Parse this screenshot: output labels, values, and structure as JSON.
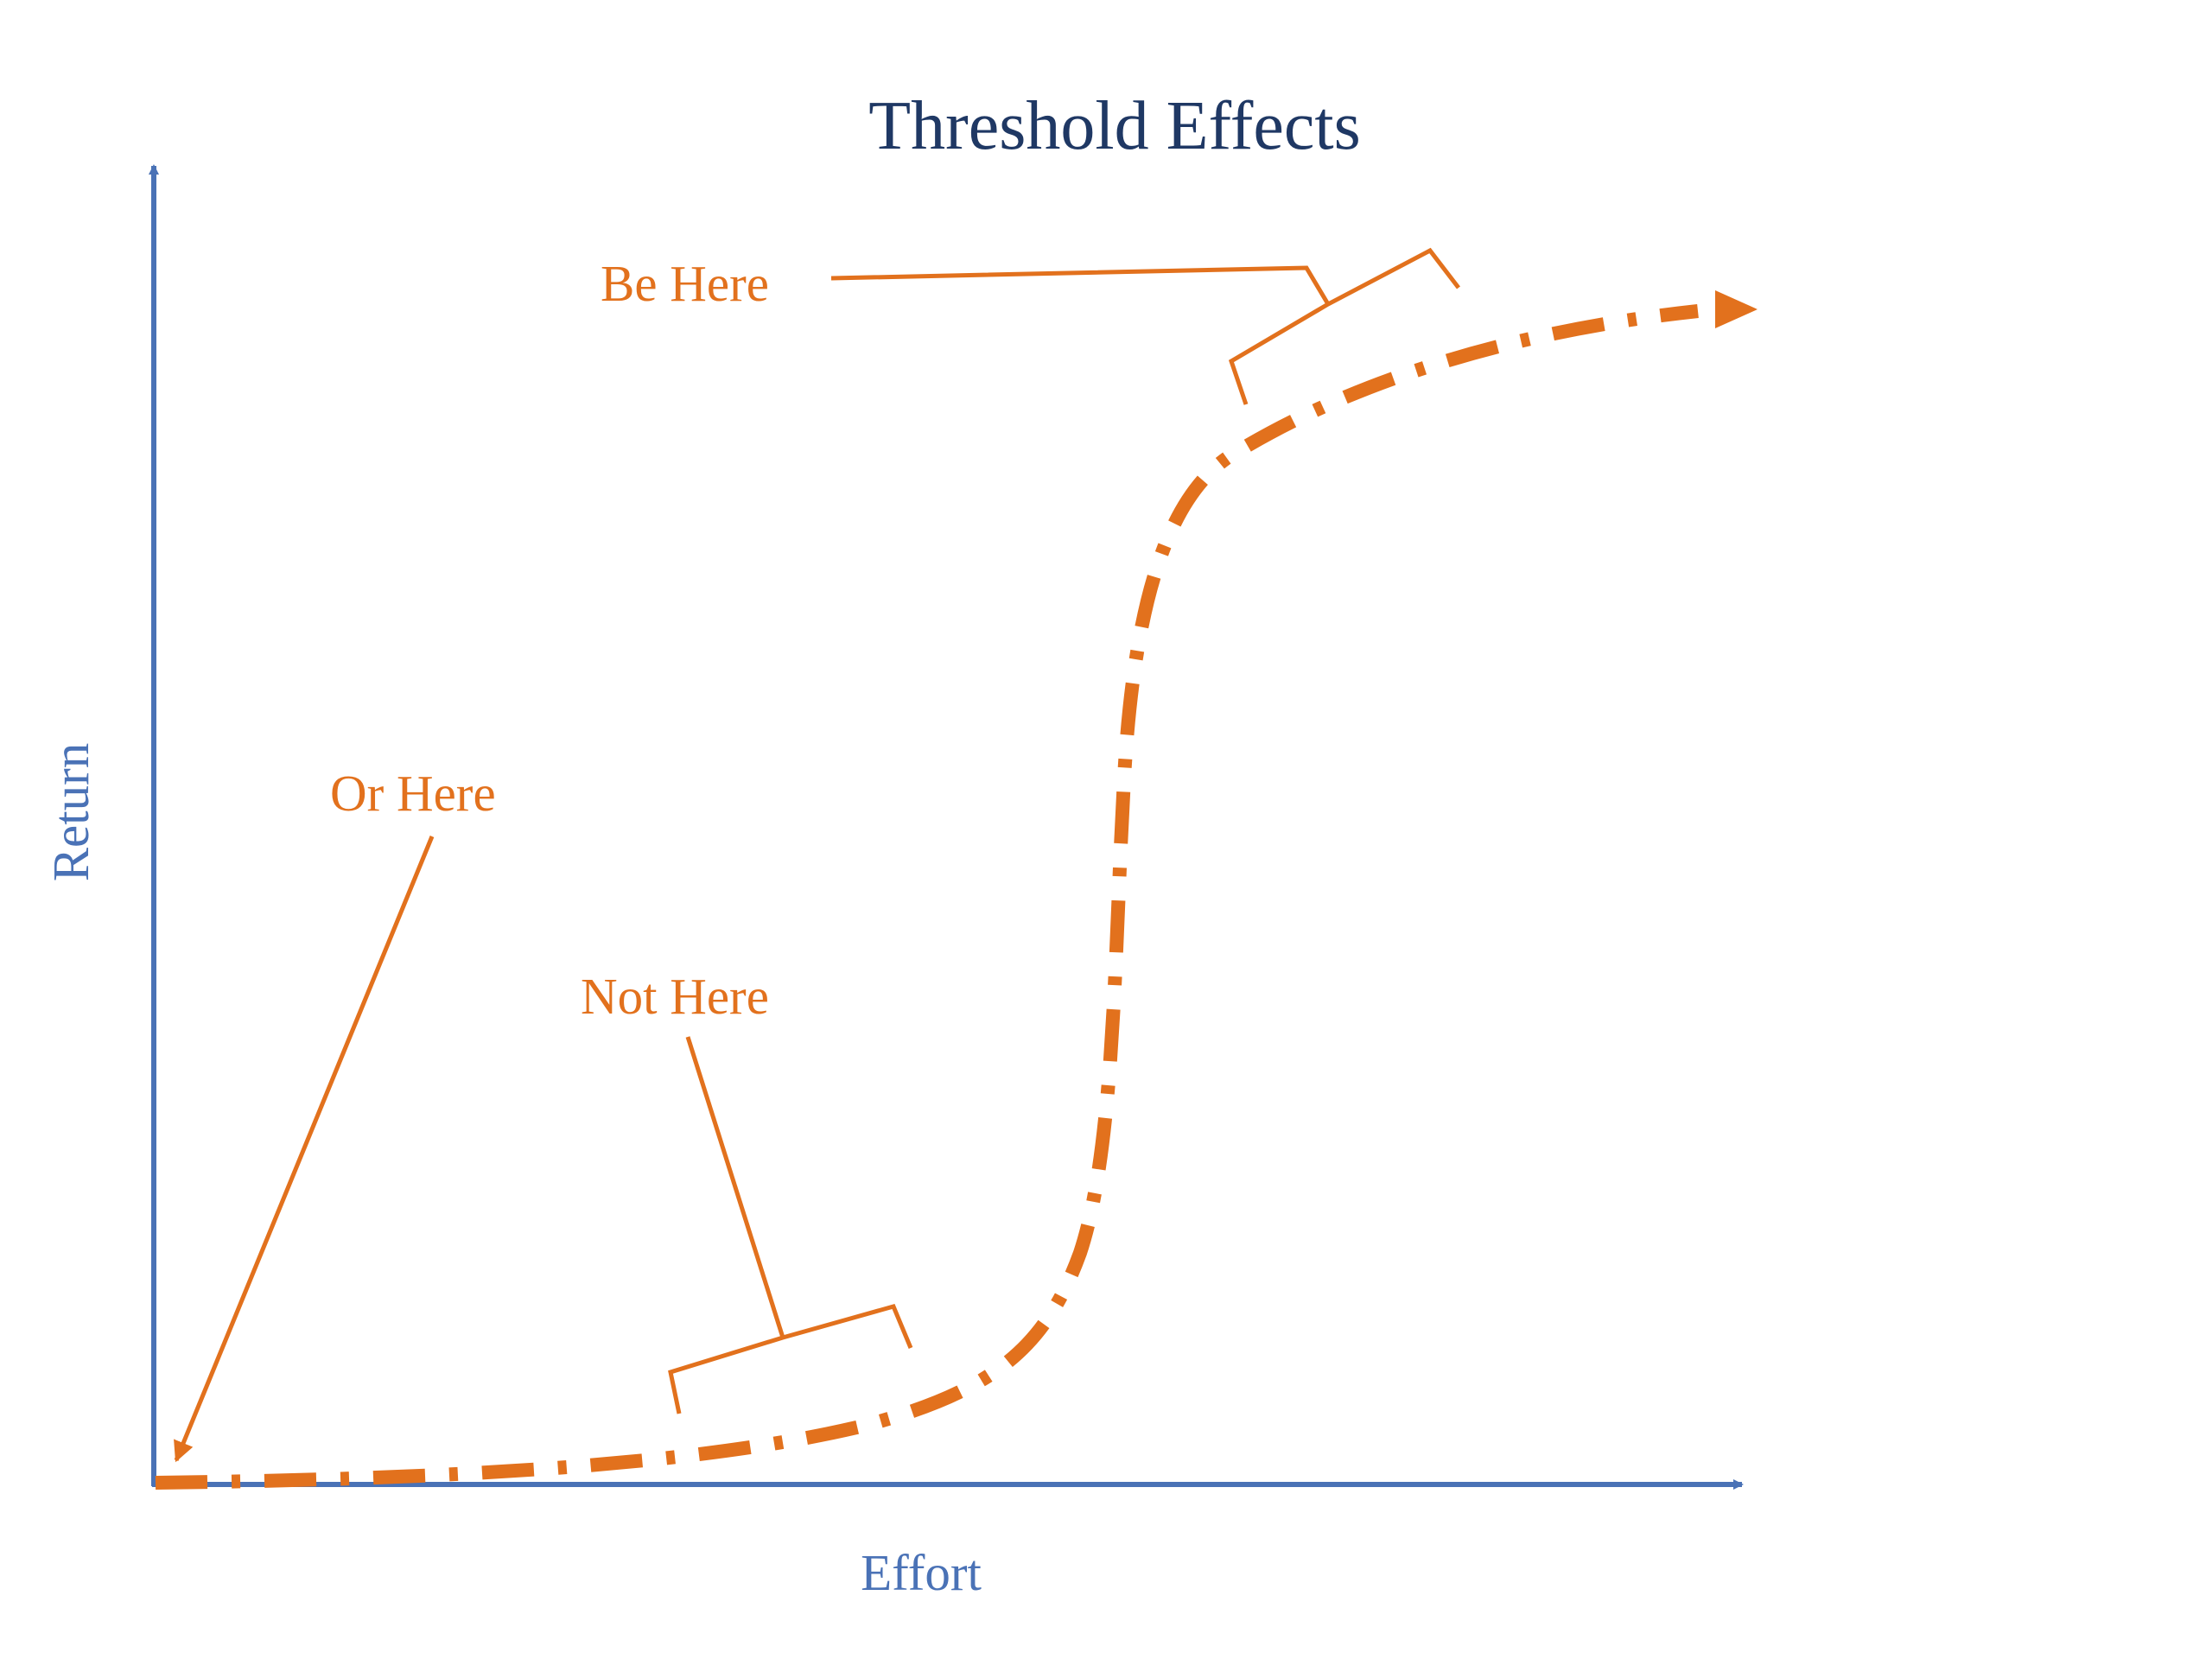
{
  "title": "Threshold Effects",
  "axes": {
    "x_label": "Effort",
    "y_label": "Return"
  },
  "callouts": {
    "be_here": "Be Here",
    "or_here": "Or Here",
    "not_here": "Not Here"
  },
  "colors": {
    "title": "#1f3864",
    "axis": "#4a72b6",
    "accent": "#e2711d"
  },
  "curve": {
    "shape": "s-curve",
    "line_style": "dash-dot",
    "end": "arrow"
  }
}
